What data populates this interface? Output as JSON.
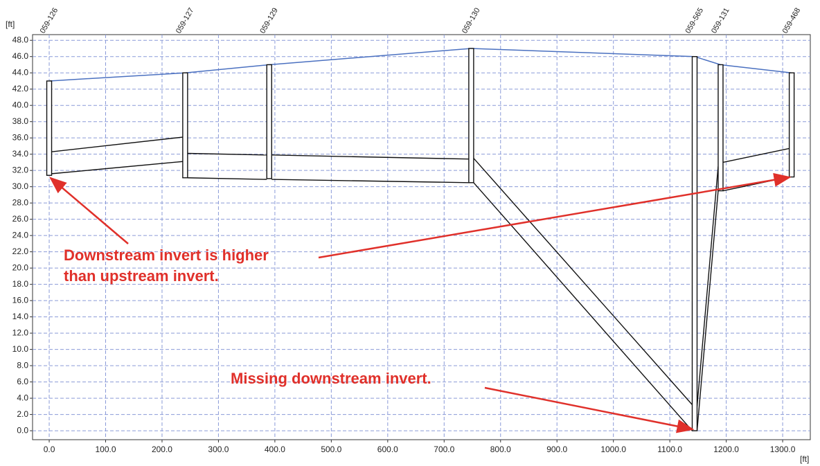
{
  "chart_data": {
    "type": "profile",
    "x_label": "[ft]",
    "y_label": "[ft]",
    "xlim": [
      -29.5,
      1349
    ],
    "ylim": [
      -1.1,
      48.7
    ],
    "xticks": [
      {
        "value": 0,
        "label": "0.0"
      },
      {
        "value": 100,
        "label": "100.0"
      },
      {
        "value": 200,
        "label": "200.0"
      },
      {
        "value": 300,
        "label": "300.0"
      },
      {
        "value": 400,
        "label": "400.0"
      },
      {
        "value": 500,
        "label": "500.0"
      },
      {
        "value": 600,
        "label": "600.0"
      },
      {
        "value": 700,
        "label": "700.0"
      },
      {
        "value": 800,
        "label": "800.0"
      },
      {
        "value": 900,
        "label": "900.0"
      },
      {
        "value": 1000,
        "label": "1000.0"
      },
      {
        "value": 1100,
        "label": "1100.0"
      },
      {
        "value": 1200,
        "label": "1200.0"
      },
      {
        "value": 1300,
        "label": "1300.0"
      }
    ],
    "yticks": [
      {
        "value": 0,
        "label": "0.0"
      },
      {
        "value": 2,
        "label": "2.0"
      },
      {
        "value": 4,
        "label": "4.0"
      },
      {
        "value": 6,
        "label": "6.0"
      },
      {
        "value": 8,
        "label": "8.0"
      },
      {
        "value": 10,
        "label": "10.0"
      },
      {
        "value": 12,
        "label": "12.0"
      },
      {
        "value": 14,
        "label": "14.0"
      },
      {
        "value": 16,
        "label": "16.0"
      },
      {
        "value": 18,
        "label": "18.0"
      },
      {
        "value": 20,
        "label": "20.0"
      },
      {
        "value": 22,
        "label": "22.0"
      },
      {
        "value": 24,
        "label": "24.0"
      },
      {
        "value": 26,
        "label": "26.0"
      },
      {
        "value": 28,
        "label": "28.0"
      },
      {
        "value": 30,
        "label": "30.0"
      },
      {
        "value": 32,
        "label": "32.0"
      },
      {
        "value": 34,
        "label": "34.0"
      },
      {
        "value": 36,
        "label": "36.0"
      },
      {
        "value": 38,
        "label": "38.0"
      },
      {
        "value": 40,
        "label": "40.0"
      },
      {
        "value": 42,
        "label": "42.0"
      },
      {
        "value": 44,
        "label": "44.0"
      },
      {
        "value": 46,
        "label": "46.0"
      },
      {
        "value": 48,
        "label": "48.0"
      }
    ],
    "grid": true,
    "ground_color": "#4a70c0",
    "pipe_color": "#111111",
    "annotation_color": "#e0302a",
    "nodes": {
      "names": [
        "059-126",
        "059-127",
        "059-129",
        "059-130",
        "059-565",
        "059-131",
        "059-468"
      ],
      "x": [
        0,
        241,
        390,
        748,
        1144,
        1190,
        1316
      ],
      "ground": [
        43.0,
        44.0,
        45.0,
        47.0,
        46.0,
        45.0,
        44.0
      ],
      "invert": [
        31.4,
        31.1,
        31.0,
        30.5,
        0.0,
        29.5,
        31.2
      ]
    },
    "pipes": {
      "upstream_invert": [
        31.6,
        31.1,
        30.9,
        30.5,
        0.0,
        29.5
      ],
      "downstream_invert": [
        33.1,
        30.9,
        30.5,
        0.0,
        29.5,
        31.2
      ],
      "upstream_crown": [
        34.3,
        34.1,
        33.9,
        33.5,
        3.0,
        33.0
      ],
      "downstream_crown": [
        36.1,
        33.9,
        33.4,
        3.2,
        32.5,
        34.7
      ]
    },
    "annotations": [
      {
        "lines": [
          "Downstream invert is higher",
          "than upstream invert."
        ]
      },
      {
        "lines": [
          "Missing downstream invert."
        ]
      }
    ]
  }
}
